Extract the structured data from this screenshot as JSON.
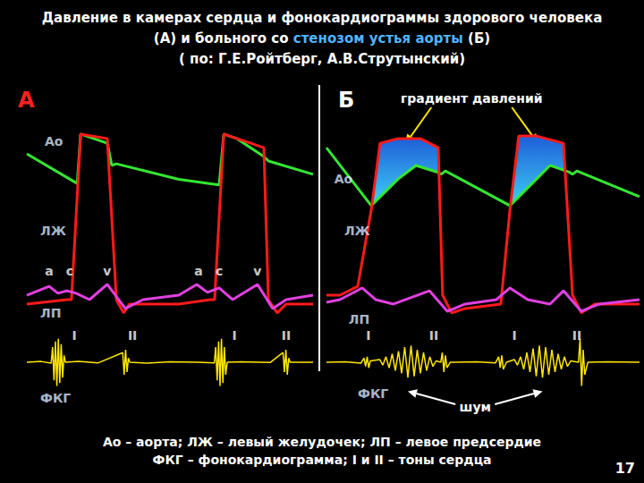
{
  "header": {
    "title": "Давление в камерах сердца и фонокардиограммы здорового человека",
    "subtitle_parts": [
      "(А) и больного со ",
      "стенозом устья аорты",
      " (Б)"
    ],
    "source": "( по: Г.Е.Ройтберг, А.В.Струтынский)"
  },
  "chart_data": [
    {
      "type": "line",
      "title": "А",
      "tick_labels": false,
      "grid": false,
      "xlim": [
        0,
        100
      ],
      "ylim": [
        0,
        100
      ],
      "series": [
        {
          "name": "Ао",
          "color": "#33e633",
          "label_x": 6.25,
          "label_y": 94.2,
          "x": [
            0,
            17.6,
            18.8,
            28.1,
            29.7,
            31.3,
            53.1,
            67.2,
            68.8,
            73.4,
            82.8,
            84.4,
            100
          ],
          "values": [
            89.7,
            79,
            96.8,
            93.5,
            85.5,
            86.1,
            80.5,
            78.5,
            96.8,
            95.2,
            88.7,
            87.1,
            82.3
          ]
        },
        {
          "name": "ЛЖ",
          "color": "#ff1a1a",
          "label_x": 4.7,
          "label_y": 61.9,
          "x": [
            0,
            14.1,
            15.6,
            18.8,
            28.1,
            31.3,
            33.8,
            35.9,
            53.1,
            64.1,
            65.6,
            68.8,
            73.4,
            82.8,
            84.4,
            87.5,
            90.6,
            100
          ],
          "values": [
            35.5,
            37.1,
            37.1,
            96.8,
            95.2,
            37,
            32.3,
            35.5,
            35.5,
            37.1,
            37.1,
            96.8,
            95.2,
            91.9,
            37,
            32.3,
            35.5,
            35.5
          ]
        },
        {
          "name": "ЛП",
          "color": "#e040e0",
          "label_x": 4.7,
          "label_y": 32.3,
          "x": [
            0,
            7.8,
            10.9,
            14.1,
            17.2,
            21.9,
            28.1,
            34.4,
            40.6,
            53.1,
            59.4,
            63.1,
            67.2,
            71.9,
            80.6,
            85.9,
            90.6,
            100
          ],
          "values": [
            38.7,
            41.9,
            39.4,
            40.3,
            39.4,
            37.1,
            42.6,
            33.9,
            37.1,
            38.7,
            42.6,
            39.7,
            41.3,
            37.1,
            42.6,
            33.9,
            37.1,
            38.7
          ]
        },
        {
          "name": "ФКГ",
          "color": "#ffe600",
          "label_x": 4.7,
          "label_y": 1.6,
          "x": [
            0,
            5,
            8.5,
            9,
            9.5,
            10,
            10.5,
            11,
            11.5,
            12,
            12.5,
            13,
            13.5,
            18,
            25,
            33.5,
            34,
            34.5,
            35,
            35.5,
            36,
            42,
            50,
            60,
            65.5,
            66,
            66.5,
            67,
            67.5,
            68,
            68.5,
            69,
            69.5,
            70,
            75,
            85,
            89.5,
            90,
            90.5,
            91,
            91.5,
            92,
            100
          ],
          "values": [
            14.5,
            14.8,
            14.2,
            20,
            8,
            22,
            6,
            23,
            7,
            21,
            9,
            17,
            14.5,
            14.8,
            14.3,
            18,
            10,
            19,
            11,
            16,
            14.5,
            14.2,
            14.7,
            14.5,
            14.3,
            20,
            8,
            22,
            6,
            23,
            7,
            20,
            10,
            14.5,
            14.7,
            14.4,
            18,
            11,
            19,
            10,
            16,
            14.5,
            14.5
          ]
        }
      ],
      "annotations": [
        {
          "text": "a",
          "x": 7.8,
          "y": 47.4
        },
        {
          "text": "c",
          "x": 15,
          "y": 47.4
        },
        {
          "text": "v",
          "x": 28.1,
          "y": 47.4
        },
        {
          "text": "a",
          "x": 60,
          "y": 47.4
        },
        {
          "text": "c",
          "x": 67.2,
          "y": 47.4
        },
        {
          "text": "v",
          "x": 80.6,
          "y": 47.4
        },
        {
          "text": "I",
          "x": 16.6,
          "y": 24.2
        },
        {
          "text": "II",
          "x": 36.9,
          "y": 24.2
        },
        {
          "text": "I",
          "x": 72.5,
          "y": 24.2
        },
        {
          "text": "II",
          "x": 90.6,
          "y": 24.2
        }
      ]
    },
    {
      "type": "line",
      "title": "Б",
      "tick_labels": false,
      "grid": false,
      "xlim": [
        0,
        100
      ],
      "ylim": [
        0,
        100
      ],
      "series": [
        {
          "name": "Ао",
          "color": "#33e633",
          "label_x": 2.5,
          "label_y": 80.6,
          "x": [
            0,
            14.3,
            22.9,
            28.6,
            35.7,
            36.6,
            38,
            58.6,
            67.1,
            71.4,
            77.7,
            78.6,
            80,
            100
          ],
          "values": [
            91.9,
            71,
            80.6,
            85.5,
            83,
            82.3,
            83.5,
            71,
            80.6,
            85.5,
            83,
            82.3,
            83.5,
            74.2
          ]
        },
        {
          "name": "ЛЖ",
          "color": "#ff1a1a",
          "label_x": 5.7,
          "label_y": 61.9,
          "x": [
            0,
            4.3,
            10,
            14.3,
            17.1,
            22.9,
            30,
            35.7,
            37.1,
            40,
            44.3,
            55.7,
            58.6,
            61.4,
            67.1,
            75.7,
            78.6,
            81.4,
            85.7,
            100
          ],
          "values": [
            38.7,
            38.7,
            41.9,
            69.4,
            93.5,
            95.2,
            95.2,
            91.9,
            38.7,
            32.3,
            33.9,
            35.5,
            69.4,
            96.1,
            96.1,
            93.5,
            38.7,
            32.3,
            35.5,
            35.5
          ]
        },
        {
          "name": "ЛП",
          "color": "#e040e0",
          "label_x": 7.1,
          "label_y": 30,
          "x": [
            0,
            4.3,
            11.4,
            15.7,
            21.4,
            32.9,
            38.6,
            44.3,
            54.3,
            58.6,
            64.3,
            71.4,
            75.7,
            81.4,
            87.1,
            100
          ],
          "values": [
            36.1,
            37.1,
            41.3,
            37.1,
            35.5,
            40.3,
            32.9,
            35.5,
            37.1,
            41.3,
            37.1,
            35.5,
            40.3,
            32.9,
            35.5,
            37.1
          ]
        },
        {
          "name": "ФКГ",
          "color": "#ffe600",
          "label_x": 10,
          "label_y": 3.2,
          "x": [
            0,
            6,
            11,
            12,
            12.5,
            13,
            13.5,
            14,
            17,
            18,
            19,
            20,
            21,
            22,
            23,
            24,
            25,
            26,
            27,
            28,
            29,
            30,
            31,
            32,
            33,
            34,
            35,
            36.5,
            37,
            37.5,
            38,
            38.5,
            39.5,
            48,
            54,
            55,
            55.5,
            56,
            56.5,
            57.5,
            60,
            61,
            62,
            63,
            64,
            65,
            66,
            67,
            68,
            69,
            70,
            71,
            72,
            73,
            74,
            75,
            76,
            77,
            78,
            80.5,
            81,
            81.5,
            82,
            82.5,
            83.5,
            90,
            100
          ],
          "values": [
            14.5,
            14.7,
            14.2,
            16,
            13,
            16.5,
            12.5,
            15,
            15.5,
            13.5,
            16.5,
            12.5,
            17.5,
            11.5,
            18.5,
            10.5,
            20,
            9,
            20.5,
            9.5,
            19,
            10.5,
            18,
            11.5,
            16.5,
            13,
            15,
            14.5,
            18,
            11,
            17,
            12.5,
            14.5,
            14.7,
            14.3,
            16.5,
            12.5,
            17,
            12,
            14.5,
            15.5,
            13.5,
            16.5,
            12,
            18,
            11,
            19.5,
            9.5,
            20.5,
            9,
            20,
            10,
            19,
            11,
            17.5,
            12,
            16.5,
            13,
            15,
            14.5,
            23,
            6,
            19,
            10,
            14.5,
            14.7,
            14.5
          ]
        }
      ],
      "annotations": [
        {
          "text": "I",
          "x": 13.4,
          "y": 24.2
        },
        {
          "text": "II",
          "x": 34.3,
          "y": 24.2
        },
        {
          "text": "I",
          "x": 60,
          "y": 24.2
        },
        {
          "text": "II",
          "x": 80,
          "y": 24.2
        }
      ],
      "pressure_gradient": {
        "label": "градиент давлений",
        "between": [
          "ЛЖ",
          "Ао"
        ],
        "ranges": [
          [
            14.6,
            35.95
          ],
          [
            58.7,
            76.2
          ]
        ]
      },
      "murmur": {
        "label": "шум",
        "series": "ФКГ",
        "ranges": [
          [
            17,
            35
          ],
          [
            60,
            78
          ]
        ]
      }
    }
  ],
  "footer": {
    "lines": [
      "Ао – аорта; ЛЖ – левый желудочек; ЛП – левое предсердие",
      "ФКГ – фонокардиограмма; I и II – тоны сердца"
    ],
    "page": "17"
  }
}
